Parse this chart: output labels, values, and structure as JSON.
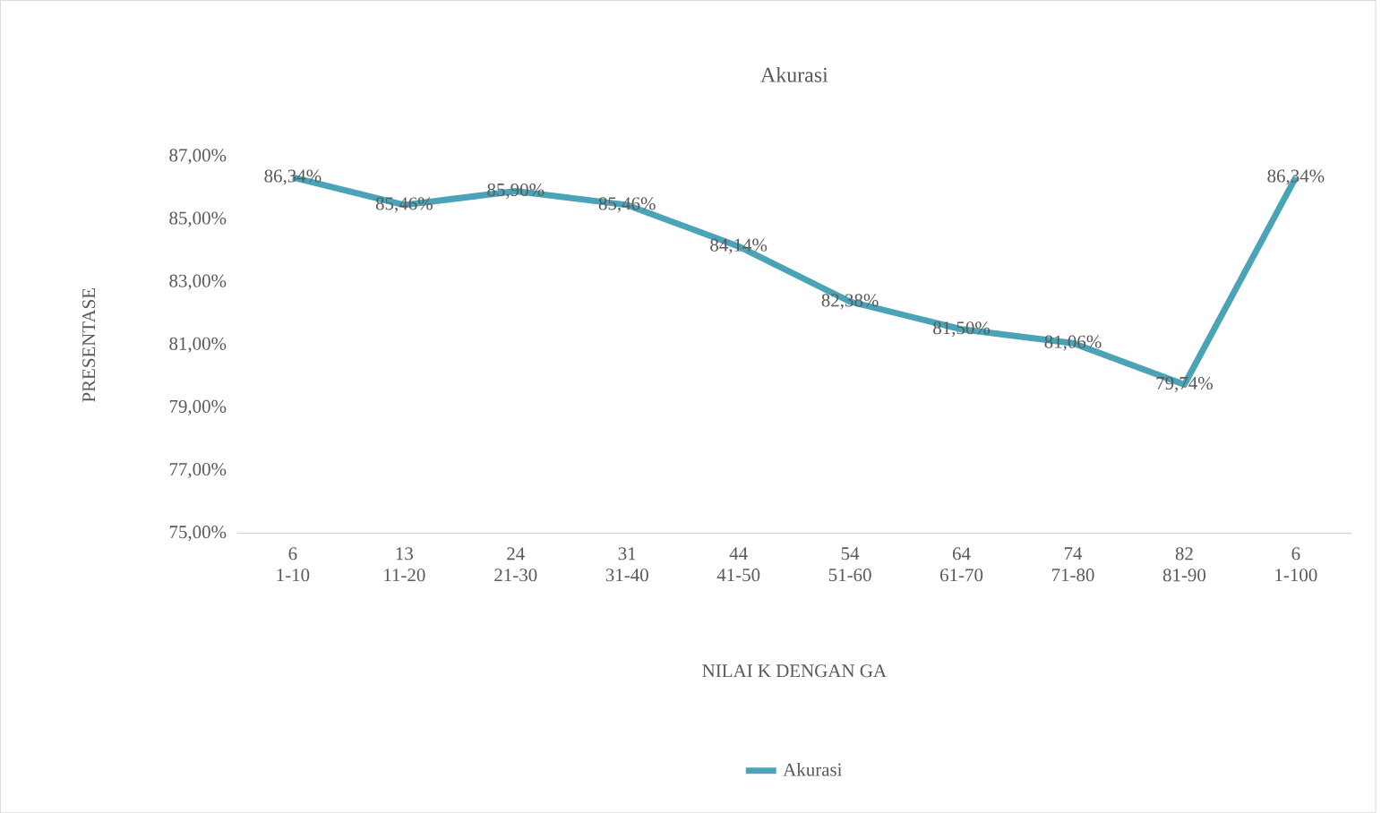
{
  "chart_data": {
    "type": "line",
    "title": "Akurasi",
    "xlabel": "NILAI K DENGAN GA",
    "ylabel": "PRESENTASE",
    "categories": [
      "6 1-10",
      "13 11-20",
      "24 21-30",
      "31 31-40",
      "44 41-50",
      "54 51-60",
      "64 61-70",
      "74 71-80",
      "82 81-90",
      "6 1-100"
    ],
    "series": [
      {
        "name": "Akurasi",
        "color": "#4ba3b8",
        "values": [
          86.34,
          85.46,
          85.9,
          85.46,
          84.14,
          82.38,
          81.5,
          81.06,
          79.74,
          86.34
        ],
        "value_labels": [
          "86,34%",
          "85,46%",
          "85,90%",
          "85,46%",
          "84,14%",
          "82,38%",
          "81,50%",
          "81,06%",
          "79,74%",
          "86,34%"
        ]
      }
    ],
    "ylim": [
      75,
      87
    ],
    "yticks": [
      {
        "value": 75,
        "label": "75,00%"
      },
      {
        "value": 77,
        "label": "77,00%"
      },
      {
        "value": 79,
        "label": "79,00%"
      },
      {
        "value": 81,
        "label": "81,00%"
      },
      {
        "value": 83,
        "label": "83,00%"
      },
      {
        "value": 85,
        "label": "85,00%"
      },
      {
        "value": 87,
        "label": "87,00%"
      }
    ],
    "legend": "bottom",
    "grid": false,
    "marker": "none",
    "line_style": "solid"
  }
}
